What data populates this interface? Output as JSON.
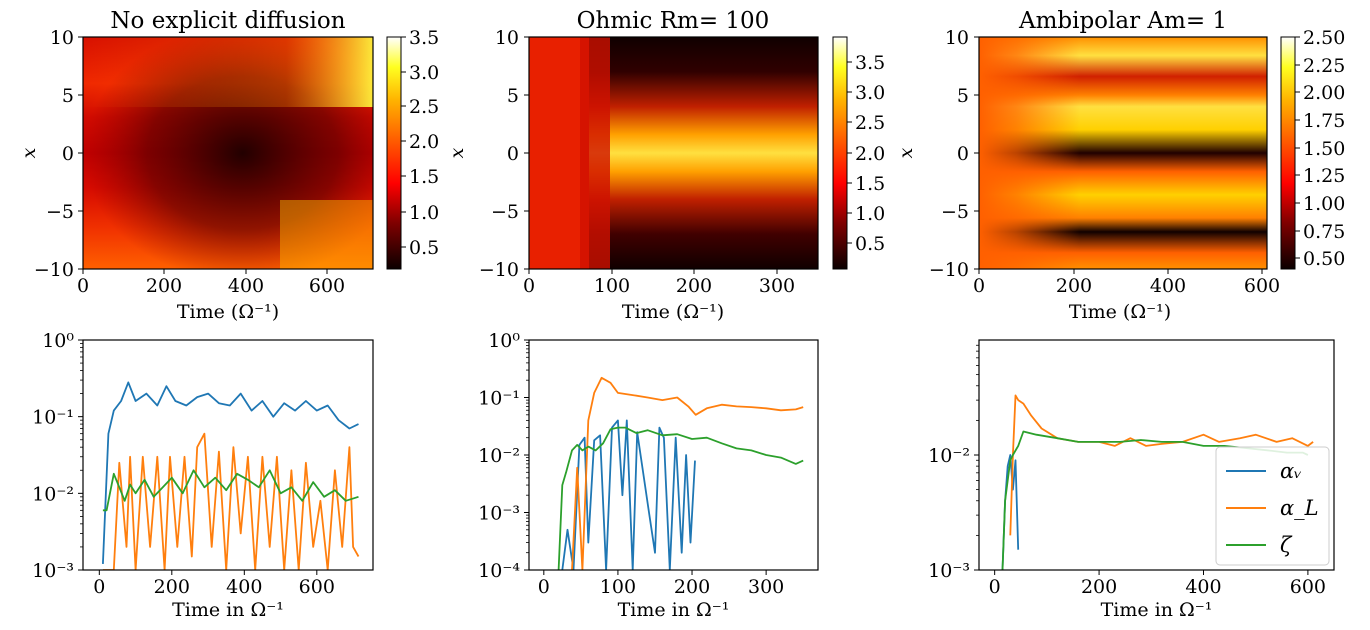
{
  "chart_data": [
    {
      "type": "heatmap",
      "title": "No explicit diffusion",
      "xlabel": "Time (Ω⁻¹)",
      "ylabel": "x",
      "x_ticks": [
        "0",
        "200",
        "400",
        "600"
      ],
      "y_ticks": [
        "10",
        "5",
        "0",
        "−5",
        "−10"
      ],
      "xlim": [
        0,
        715
      ],
      "ylim": [
        -10,
        10
      ],
      "colorbar": {
        "colormap": "hot",
        "range": [
          0.15,
          3.5
        ],
        "ticks": [
          3.5,
          3.0,
          2.5,
          2.0,
          1.5,
          1.0,
          0.5
        ],
        "tick_labels": [
          "3.5",
          "3.0",
          "2.5",
          "2.0",
          "1.5",
          "1.0",
          "0.5"
        ]
      }
    },
    {
      "type": "heatmap",
      "title": "Ohmic Rm= 100",
      "xlabel": "Time (Ω⁻¹)",
      "ylabel": "x",
      "x_ticks": [
        "0",
        "100",
        "200",
        "300"
      ],
      "y_ticks": [
        "10",
        "5",
        "0",
        "−5",
        "−10"
      ],
      "xlim": [
        0,
        350
      ],
      "ylim": [
        -10,
        10
      ],
      "colorbar": {
        "colormap": "hot",
        "range": [
          0.05,
          3.9
        ],
        "ticks": [
          3.5,
          3.0,
          2.5,
          2.0,
          1.5,
          1.0,
          0.5
        ],
        "tick_labels": [
          "3.5",
          "3.0",
          "2.5",
          "2.0",
          "1.5",
          "1.0",
          "0.5"
        ]
      }
    },
    {
      "type": "heatmap",
      "title": "Ambipolar Am= 1",
      "xlabel": "Time (Ω⁻¹)",
      "ylabel": "x",
      "x_ticks": [
        "0",
        "200",
        "400",
        "600"
      ],
      "y_ticks": [
        "10",
        "5",
        "0",
        "−5",
        "−10"
      ],
      "xlim": [
        0,
        610
      ],
      "ylim": [
        -10,
        10
      ],
      "colorbar": {
        "colormap": "hot",
        "range": [
          0.4,
          2.5
        ],
        "ticks": [
          2.5,
          2.25,
          2.0,
          1.75,
          1.5,
          1.25,
          1.0,
          0.75,
          0.5
        ],
        "tick_labels": [
          "2.50",
          "2.25",
          "2.00",
          "1.75",
          "1.50",
          "1.25",
          "1.00",
          "0.75",
          "0.50"
        ]
      }
    },
    {
      "type": "line",
      "yscale": "log",
      "xlabel": "Time in Ω⁻¹",
      "xlim": [
        -45,
        755
      ],
      "ylim": [
        0.001,
        1
      ],
      "x_ticks": [
        0,
        200,
        400,
        600
      ],
      "x_tick_labels": [
        "0",
        "200",
        "400",
        "600"
      ],
      "y_ticks": [
        0.001,
        0.01,
        0.1,
        1
      ],
      "y_tick_labels": [
        "10⁻³",
        "10⁻²",
        "10⁻¹",
        "10⁰"
      ],
      "series": [
        {
          "color": "#1f77b4",
          "x": [
            10,
            25,
            40,
            60,
            80,
            100,
            130,
            160,
            185,
            210,
            240,
            270,
            300,
            330,
            360,
            390,
            420,
            450,
            480,
            510,
            540,
            570,
            600,
            630,
            660,
            690,
            715
          ],
          "y": [
            0.0012,
            0.06,
            0.12,
            0.16,
            0.28,
            0.16,
            0.2,
            0.14,
            0.25,
            0.16,
            0.14,
            0.18,
            0.2,
            0.15,
            0.14,
            0.2,
            0.12,
            0.16,
            0.1,
            0.15,
            0.12,
            0.16,
            0.12,
            0.14,
            0.09,
            0.07,
            0.08
          ]
        },
        {
          "color": "#ff7f0e",
          "x": [
            10,
            40,
            55,
            75,
            85,
            100,
            120,
            140,
            160,
            180,
            195,
            215,
            235,
            255,
            270,
            290,
            310,
            330,
            350,
            370,
            390,
            410,
            430,
            450,
            470,
            490,
            510,
            530,
            550,
            570,
            590,
            610,
            630,
            650,
            670,
            690,
            700,
            715
          ],
          "y": [
            0.0008,
            0.0008,
            0.025,
            0.002,
            0.03,
            0.0009,
            0.03,
            0.002,
            0.03,
            0.001,
            0.03,
            0.002,
            0.03,
            0.0015,
            0.04,
            0.06,
            0.002,
            0.035,
            0.001,
            0.04,
            0.003,
            0.03,
            0.0009,
            0.03,
            0.002,
            0.03,
            0.001,
            0.02,
            0.0009,
            0.025,
            0.002,
            0.008,
            0.0009,
            0.02,
            0.002,
            0.04,
            0.002,
            0.0015
          ]
        },
        {
          "color": "#2ca02c",
          "x": [
            10,
            20,
            40,
            55,
            70,
            85,
            100,
            125,
            150,
            175,
            200,
            230,
            260,
            290,
            320,
            350,
            380,
            410,
            440,
            470,
            500,
            530,
            560,
            590,
            620,
            650,
            680,
            715
          ],
          "y": [
            0.006,
            0.006,
            0.018,
            0.012,
            0.008,
            0.013,
            0.01,
            0.015,
            0.009,
            0.012,
            0.016,
            0.01,
            0.02,
            0.012,
            0.016,
            0.011,
            0.018,
            0.015,
            0.012,
            0.02,
            0.01,
            0.012,
            0.008,
            0.014,
            0.009,
            0.011,
            0.008,
            0.009
          ]
        }
      ]
    },
    {
      "type": "line",
      "yscale": "log",
      "xlabel": "Time in Ω⁻¹",
      "xlim": [
        -20,
        370
      ],
      "ylim": [
        0.0001,
        1
      ],
      "x_ticks": [
        0,
        100,
        200,
        300
      ],
      "x_tick_labels": [
        "0",
        "100",
        "200",
        "300"
      ],
      "y_ticks": [
        0.0001,
        0.001,
        0.01,
        0.1,
        1
      ],
      "y_tick_labels": [
        "10⁻⁴",
        "10⁻³",
        "10⁻²",
        "10⁻¹",
        "10⁰"
      ],
      "series": [
        {
          "color": "#1f77b4",
          "x": [
            25,
            32,
            40,
            48,
            55,
            60,
            68,
            76,
            84,
            92,
            100,
            106,
            112,
            120,
            126,
            134,
            142,
            150,
            156,
            162,
            170,
            178,
            186,
            192,
            198,
            204
          ],
          "y": [
            0.0001,
            0.0005,
            0.0001,
            0.015,
            0.02,
            0.0003,
            0.018,
            0.022,
            0.0001,
            0.03,
            0.04,
            0.002,
            0.04,
            0.0001,
            0.025,
            0.005,
            0.001,
            0.0002,
            0.03,
            0.02,
            0.0001,
            0.02,
            0.0002,
            0.01,
            0.0003,
            0.008
          ]
        },
        {
          "color": "#ff7f0e",
          "x": [
            38,
            45,
            52,
            60,
            68,
            78,
            90,
            100,
            120,
            140,
            160,
            180,
            195,
            205,
            220,
            240,
            260,
            280,
            300,
            320,
            340,
            350
          ],
          "y": [
            0.0001,
            0.006,
            0.0001,
            0.04,
            0.12,
            0.22,
            0.18,
            0.12,
            0.11,
            0.1,
            0.09,
            0.1,
            0.07,
            0.05,
            0.065,
            0.075,
            0.07,
            0.068,
            0.065,
            0.06,
            0.062,
            0.068
          ]
        },
        {
          "color": "#2ca02c",
          "x": [
            20,
            25,
            30,
            38,
            45,
            52,
            60,
            70,
            80,
            90,
            100,
            110,
            125,
            140,
            160,
            180,
            200,
            220,
            240,
            260,
            280,
            300,
            320,
            340,
            350
          ],
          "y": [
            0.0001,
            0.003,
            0.005,
            0.012,
            0.015,
            0.012,
            0.014,
            0.012,
            0.016,
            0.028,
            0.03,
            0.03,
            0.024,
            0.027,
            0.022,
            0.023,
            0.019,
            0.02,
            0.016,
            0.013,
            0.012,
            0.01,
            0.009,
            0.007,
            0.008
          ]
        }
      ]
    },
    {
      "type": "line",
      "yscale": "log",
      "xlabel": "Time in Ω⁻¹",
      "xlim": [
        -30,
        650
      ],
      "ylim": [
        0.001,
        0.1
      ],
      "x_ticks": [
        0,
        200,
        400,
        600
      ],
      "x_tick_labels": [
        "0",
        "200",
        "400",
        "600"
      ],
      "y_ticks": [
        0.001,
        0.01
      ],
      "y_tick_labels": [
        "10⁻³",
        "10⁻²"
      ],
      "legend": {
        "position": "lower-right",
        "labels": [
          "αᵥ",
          "α_L",
          "ζ"
        ]
      },
      "series": [
        {
          "color": "#1f77b4",
          "x": [
            15,
            20,
            25,
            30,
            35,
            40,
            45
          ],
          "y": [
            0.001,
            0.004,
            0.008,
            0.01,
            0.005,
            0.009,
            0.0015
          ]
        },
        {
          "color": "#ff7f0e",
          "x": [
            30,
            35,
            40,
            45,
            55,
            70,
            90,
            120,
            160,
            200,
            230,
            260,
            290,
            320,
            360,
            400,
            430,
            470,
            500,
            540,
            570,
            600,
            610
          ],
          "y": [
            0.002,
            0.01,
            0.033,
            0.03,
            0.028,
            0.022,
            0.017,
            0.014,
            0.013,
            0.013,
            0.012,
            0.014,
            0.012,
            0.0125,
            0.013,
            0.015,
            0.013,
            0.014,
            0.015,
            0.013,
            0.014,
            0.012,
            0.013
          ]
        },
        {
          "color": "#2ca02c",
          "x": [
            15,
            20,
            25,
            30,
            35,
            45,
            55,
            80,
            120,
            160,
            200,
            240,
            280,
            320,
            360,
            400,
            440,
            480,
            520,
            560,
            590,
            600
          ],
          "y": [
            0.001,
            0.004,
            0.006,
            0.009,
            0.01,
            0.012,
            0.016,
            0.015,
            0.014,
            0.013,
            0.013,
            0.013,
            0.0135,
            0.013,
            0.013,
            0.012,
            0.012,
            0.0115,
            0.011,
            0.0105,
            0.0105,
            0.01
          ]
        }
      ]
    }
  ]
}
